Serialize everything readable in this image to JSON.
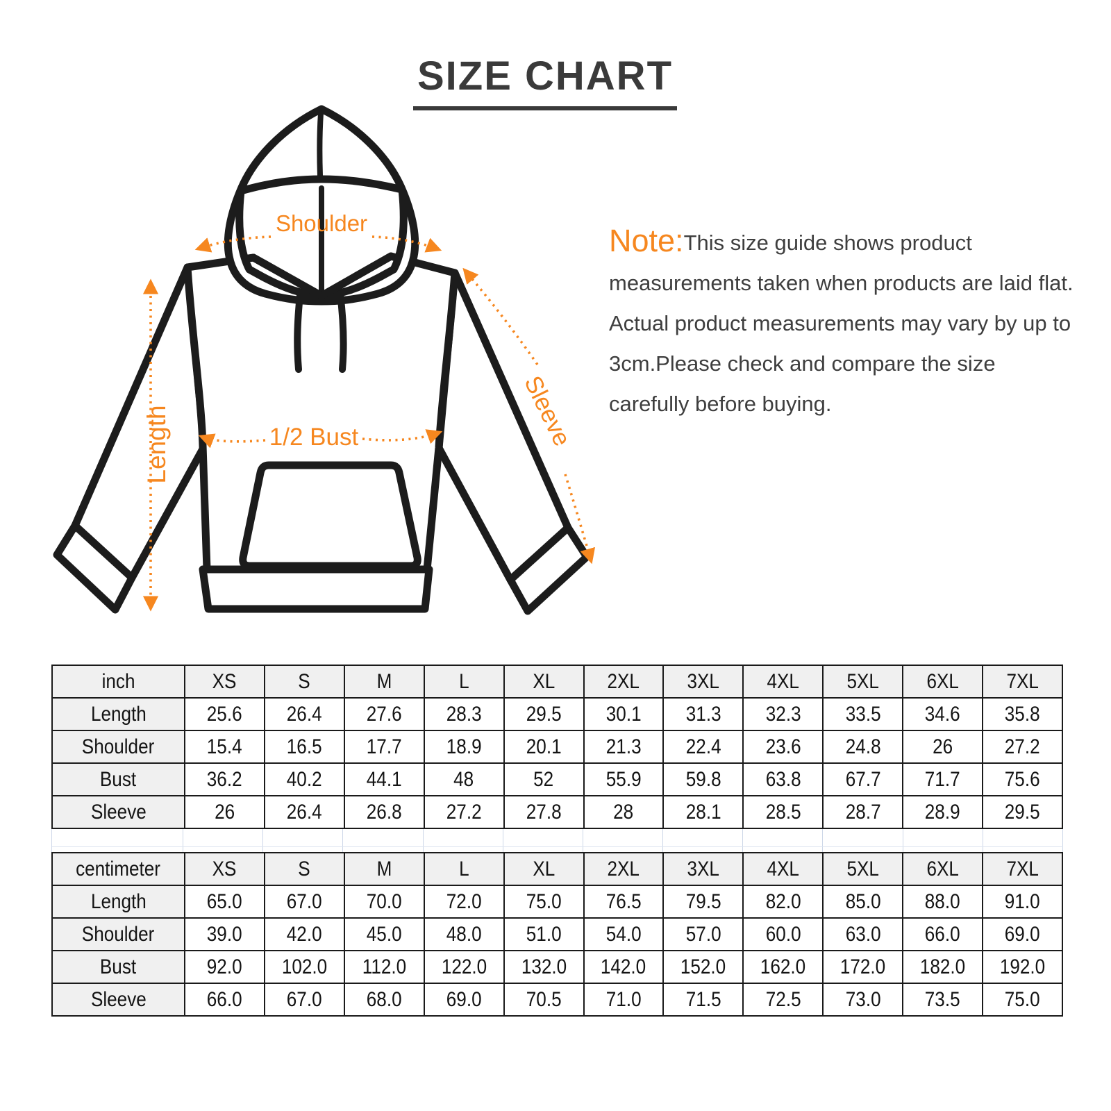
{
  "title": "SIZE CHART",
  "note": {
    "label": "Note:",
    "text": "This size guide shows product measurements taken when products are laid flat. Actual product measurements may vary by up to 3cm.Please check and compare the size carefully before buying."
  },
  "colors": {
    "accent": "#F6871F",
    "ink": "#1C1C1C"
  },
  "diagram": {
    "labels": {
      "shoulder": "Shoulder",
      "length": "Length",
      "bust": "1/2 Bust",
      "sleeve": "Sleeve"
    }
  },
  "tables": [
    {
      "unit": "inch",
      "sizes": [
        "XS",
        "S",
        "M",
        "L",
        "XL",
        "2XL",
        "3XL",
        "4XL",
        "5XL",
        "6XL",
        "7XL"
      ],
      "rows": [
        {
          "label": "Length",
          "values": [
            "25.6",
            "26.4",
            "27.6",
            "28.3",
            "29.5",
            "30.1",
            "31.3",
            "32.3",
            "33.5",
            "34.6",
            "35.8"
          ]
        },
        {
          "label": "Shoulder",
          "values": [
            "15.4",
            "16.5",
            "17.7",
            "18.9",
            "20.1",
            "21.3",
            "22.4",
            "23.6",
            "24.8",
            "26",
            "27.2"
          ]
        },
        {
          "label": "Bust",
          "values": [
            "36.2",
            "40.2",
            "44.1",
            "48",
            "52",
            "55.9",
            "59.8",
            "63.8",
            "67.7",
            "71.7",
            "75.6"
          ]
        },
        {
          "label": "Sleeve",
          "values": [
            "26",
            "26.4",
            "26.8",
            "27.2",
            "27.8",
            "28",
            "28.1",
            "28.5",
            "28.7",
            "28.9",
            "29.5"
          ]
        }
      ]
    },
    {
      "unit": "centimeter",
      "sizes": [
        "XS",
        "S",
        "M",
        "L",
        "XL",
        "2XL",
        "3XL",
        "4XL",
        "5XL",
        "6XL",
        "7XL"
      ],
      "rows": [
        {
          "label": "Length",
          "values": [
            "65.0",
            "67.0",
            "70.0",
            "72.0",
            "75.0",
            "76.5",
            "79.5",
            "82.0",
            "85.0",
            "88.0",
            "91.0"
          ]
        },
        {
          "label": "Shoulder",
          "values": [
            "39.0",
            "42.0",
            "45.0",
            "48.0",
            "51.0",
            "54.0",
            "57.0",
            "60.0",
            "63.0",
            "66.0",
            "69.0"
          ]
        },
        {
          "label": "Bust",
          "values": [
            "92.0",
            "102.0",
            "112.0",
            "122.0",
            "132.0",
            "142.0",
            "152.0",
            "162.0",
            "172.0",
            "182.0",
            "192.0"
          ]
        },
        {
          "label": "Sleeve",
          "values": [
            "66.0",
            "67.0",
            "68.0",
            "69.0",
            "70.5",
            "71.0",
            "71.5",
            "72.5",
            "73.0",
            "73.5",
            "75.0"
          ]
        }
      ]
    }
  ]
}
